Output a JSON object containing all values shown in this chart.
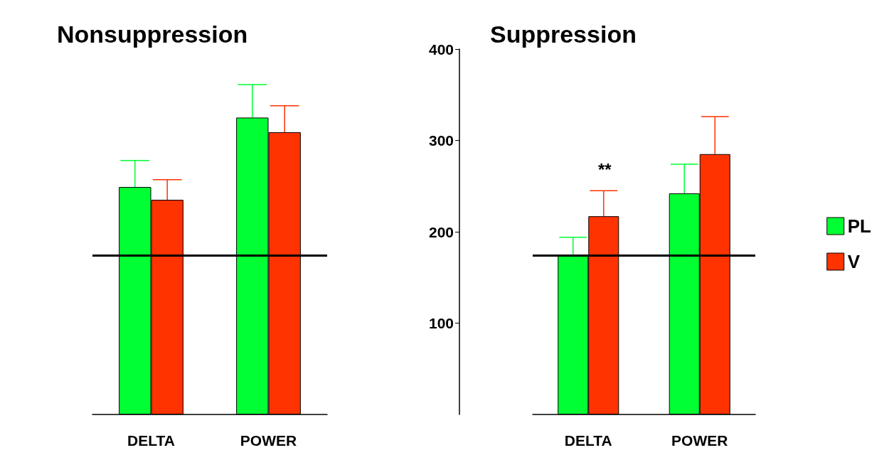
{
  "chart_data": [
    {
      "type": "bar",
      "title": "Nonsuppression",
      "categories": [
        "DELTA",
        "POWER"
      ],
      "series": [
        {
          "color": "#00ff33",
          "values": [
            249,
            325
          ],
          "errors": [
            [
              249,
              278
            ],
            [
              325,
              361
            ]
          ]
        },
        {
          "color": "#ff3300",
          "values": [
            235,
            309
          ],
          "errors": [
            [
              235,
              257
            ],
            [
              309,
              338
            ]
          ]
        }
      ],
      "ylim": [
        0,
        400
      ],
      "yticks": [
        100,
        200,
        300,
        400
      ],
      "tick_labels": "x",
      "grid": false,
      "legend": false,
      "ref_lines": [
        {
          "axis": "y",
          "value": 174,
          "color": "#000000"
        }
      ]
    },
    {
      "type": "bar",
      "title": "Suppression",
      "categories": [
        "DELTA",
        "POWER"
      ],
      "series": [
        {
          "name": "PL",
          "color": "#00ff33",
          "values": [
            175,
            242
          ],
          "errors": [
            [
              175,
              194
            ],
            [
              242,
              274
            ]
          ]
        },
        {
          "name": "V",
          "color": "#ff3300",
          "values": [
            217,
            285
          ],
          "errors": [
            [
              217,
              245
            ],
            [
              285,
              326
            ]
          ]
        }
      ],
      "ylim": [
        0,
        400
      ],
      "yticks": [
        100,
        200,
        300,
        400
      ],
      "grid": false,
      "legend": "right",
      "annotations": [
        {
          "text": "**",
          "x": "DELTA",
          "y": 245
        }
      ],
      "ref_lines": [
        {
          "axis": "y",
          "value": 174,
          "color": "#000000"
        }
      ]
    }
  ]
}
